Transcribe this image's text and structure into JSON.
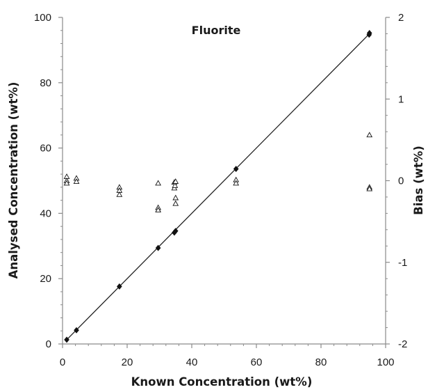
{
  "chart_data": {
    "type": "scatter",
    "title": "Fluorite",
    "xlabel": "Known Concentration (wt%)",
    "ylabel": "Analysed Concentration (wt%)",
    "y2label": "Bias (wt%)",
    "xlim": [
      0,
      100
    ],
    "ylim": [
      0,
      100
    ],
    "y2lim": [
      -2,
      2
    ],
    "x_ticks": [
      "0",
      "20",
      "40",
      "60",
      "80",
      "100"
    ],
    "y_ticks": [
      "0",
      "20",
      "40",
      "60",
      "80",
      "100"
    ],
    "y2_ticks": [
      "-2",
      "-1",
      "0",
      "1",
      "2"
    ],
    "grid": false,
    "series": [
      {
        "marker": "filled-diamond",
        "axis": "left",
        "color": "#111111",
        "points": [
          {
            "x": 1.3,
            "y": 1.3
          },
          {
            "x": 4.3,
            "y": 4.2
          },
          {
            "x": 17.6,
            "y": 17.6
          },
          {
            "x": 29.6,
            "y": 29.4
          },
          {
            "x": 34.6,
            "y": 34.1
          },
          {
            "x": 35.0,
            "y": 34.6
          },
          {
            "x": 53.7,
            "y": 53.6
          },
          {
            "x": 94.9,
            "y": 94.7
          },
          {
            "x": 95.0,
            "y": 95.2
          }
        ]
      },
      {
        "marker": "open-triangle",
        "axis": "right",
        "color": "#111111",
        "points": [
          {
            "x": 1.3,
            "y": 0.05
          },
          {
            "x": 1.3,
            "y": 0.0
          },
          {
            "x": 1.3,
            "y": -0.03
          },
          {
            "x": 4.3,
            "y": 0.03
          },
          {
            "x": 4.3,
            "y": -0.01
          },
          {
            "x": 17.6,
            "y": -0.08
          },
          {
            "x": 17.6,
            "y": -0.12
          },
          {
            "x": 17.6,
            "y": -0.17
          },
          {
            "x": 29.6,
            "y": -0.03
          },
          {
            "x": 29.6,
            "y": -0.33
          },
          {
            "x": 29.6,
            "y": -0.36
          },
          {
            "x": 34.6,
            "y": -0.02
          },
          {
            "x": 34.6,
            "y": -0.09
          },
          {
            "x": 34.8,
            "y": -0.06
          },
          {
            "x": 35.0,
            "y": -0.01
          },
          {
            "x": 35.0,
            "y": -0.21
          },
          {
            "x": 35.0,
            "y": -0.28
          },
          {
            "x": 53.7,
            "y": 0.01
          },
          {
            "x": 53.7,
            "y": -0.03
          },
          {
            "x": 95.0,
            "y": 0.56
          },
          {
            "x": 95.0,
            "y": -0.08
          },
          {
            "x": 95.0,
            "y": -0.1
          }
        ]
      }
    ],
    "fit_line": {
      "x": [
        1.3,
        95.0
      ],
      "y": [
        1.3,
        95.0
      ]
    }
  }
}
